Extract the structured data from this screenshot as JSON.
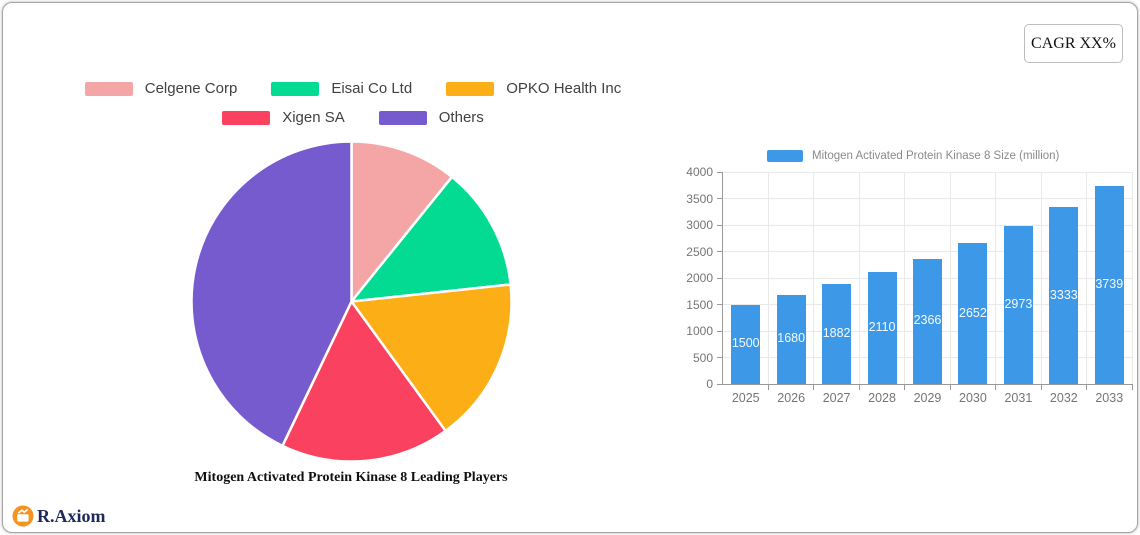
{
  "cagr_button": {
    "label": "CAGR XX%"
  },
  "logo": {
    "text": "R.Axiom",
    "icon": "bar-chart-icon",
    "icon_bg": "#F6921E",
    "text_color": "#1E2A5A"
  },
  "chart_data": [
    {
      "type": "pie",
      "title": "Mitogen Activated Protein Kinase 8 Leading Players",
      "labels": [
        "Celgene Corp",
        "Eisai Co Ltd",
        "OPKO Health Inc",
        "Xigen SA",
        "Others"
      ],
      "values": [
        10.8,
        12.5,
        16.7,
        17.1,
        42.9
      ],
      "unit": "percent_share",
      "colors": [
        "#F4A6A6",
        "#04DB92",
        "#FCAE17",
        "#FA415F",
        "#765BCE"
      ],
      "start_angle": "12-oclock",
      "direction": "clockwise",
      "slice_border_color": "#FFFFFF",
      "legend_position": "top",
      "legend_rows": [
        [
          0,
          1,
          2
        ],
        [
          3,
          4
        ]
      ]
    },
    {
      "type": "bar",
      "series_name": "Mitogen Activated Protein Kinase 8 Size (million)",
      "categories": [
        "2025",
        "2026",
        "2027",
        "2028",
        "2029",
        "2030",
        "2031",
        "2032",
        "2033"
      ],
      "values": [
        1500,
        1680,
        1882,
        2110,
        2366,
        2652,
        2973,
        3333,
        3739
      ],
      "ylim": [
        0,
        4000
      ],
      "ytick_step": 500,
      "bar_color": "#3D99E8",
      "value_label_color": "#FFFFFF",
      "axis_label_color": "#757575",
      "grid": true,
      "legend_position": "top"
    }
  ]
}
